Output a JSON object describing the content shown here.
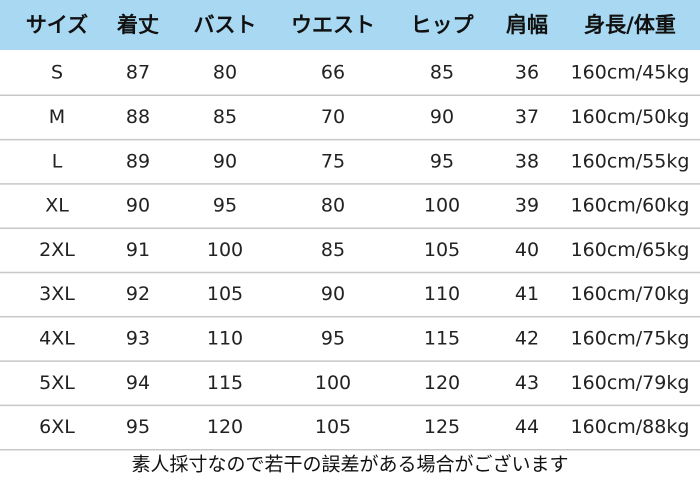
{
  "table": {
    "header": [
      "サイズ",
      "着丈",
      "バスト",
      "ウエスト",
      "ヒップ",
      "肩幅",
      "身長/体重"
    ],
    "rows": [
      [
        "S",
        87,
        80,
        66,
        85,
        36,
        "160cm/45kg"
      ],
      [
        "M",
        88,
        85,
        70,
        90,
        37,
        "160cm/50kg"
      ],
      [
        "L",
        89,
        90,
        75,
        95,
        38,
        "160cm/55kg"
      ],
      [
        "XL",
        90,
        95,
        80,
        100,
        39,
        "160cm/60kg"
      ],
      [
        "2XL",
        91,
        100,
        85,
        105,
        40,
        "160cm/65kg"
      ],
      [
        "3XL",
        92,
        105,
        90,
        110,
        41,
        "160cm/70kg"
      ],
      [
        "4XL",
        93,
        110,
        95,
        115,
        42,
        "160cm/75kg"
      ],
      [
        "5XL",
        94,
        115,
        100,
        120,
        43,
        "160cm/79kg"
      ],
      [
        "6XL",
        95,
        120,
        105,
        125,
        44,
        "160cm/88kg"
      ]
    ]
  },
  "footer": {
    "note": "素人採寸なので若干の誤差がある場合がございます"
  }
}
